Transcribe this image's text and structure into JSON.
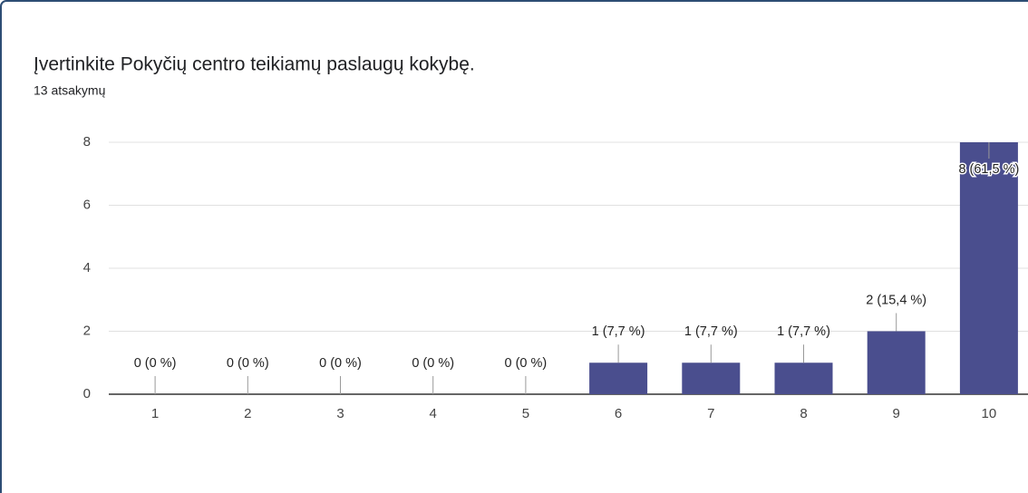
{
  "chart_data": {
    "type": "bar",
    "title": "Įvertinkite Pokyčių centro teikiamų paslaugų kokybę.",
    "subtitle": "13 atsakymų",
    "categories": [
      "1",
      "2",
      "3",
      "4",
      "5",
      "6",
      "7",
      "8",
      "9",
      "10"
    ],
    "values": [
      0,
      0,
      0,
      0,
      0,
      1,
      1,
      1,
      2,
      8
    ],
    "value_labels": [
      "0 (0 %)",
      "0 (0 %)",
      "0 (0 %)",
      "0 (0 %)",
      "0 (0 %)",
      "1 (7,7 %)",
      "1 (7,7 %)",
      "1 (7,7 %)",
      "2 (15,4 %)",
      "8 (61,5 %)"
    ],
    "color": "#4a4e8e",
    "ylim": [
      0,
      8
    ],
    "yticks": [
      0,
      2,
      4,
      6,
      8
    ],
    "grid": true
  }
}
